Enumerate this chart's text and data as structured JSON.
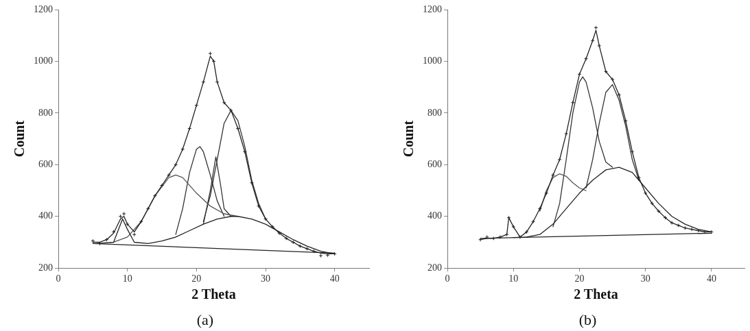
{
  "chart_data": [
    {
      "type": "line",
      "xlabel": "2 Theta",
      "ylabel": "Count",
      "annotations": [
        "(a)"
      ],
      "xlim": [
        0,
        45
      ],
      "xticks": [
        0,
        10,
        20,
        30,
        40
      ],
      "ylim": [
        200,
        1200
      ],
      "yticks": [
        200,
        400,
        600,
        800,
        1000,
        1200
      ],
      "grid": false,
      "legend": false,
      "marker": "none",
      "line_style": "solid",
      "series": [
        {
          "type": "scatter",
          "marker": "cross",
          "color": "#222222",
          "x": [
            5,
            6,
            7,
            8,
            9,
            9.5,
            10,
            11,
            12,
            13,
            14,
            15,
            16,
            17,
            18,
            19,
            20,
            21,
            22,
            22.5,
            23,
            24,
            25,
            26,
            27,
            28,
            29,
            30,
            31,
            32,
            33,
            34,
            35,
            36,
            37,
            38,
            39,
            40
          ],
          "values": [
            305,
            295,
            310,
            340,
            400,
            410,
            370,
            330,
            380,
            430,
            480,
            520,
            560,
            600,
            660,
            740,
            830,
            920,
            1030,
            1000,
            920,
            840,
            810,
            740,
            650,
            530,
            440,
            390,
            360,
            335,
            315,
            300,
            285,
            275,
            265,
            248,
            250,
            255
          ]
        },
        {
          "color": "#222222",
          "x": [
            5,
            6,
            7,
            8,
            9,
            9.5,
            10,
            11,
            12,
            13,
            14,
            15,
            16,
            17,
            18,
            19,
            20,
            21,
            22,
            22.5,
            23,
            24,
            25,
            26,
            27,
            28,
            29,
            30,
            31,
            32,
            33,
            34,
            35,
            36,
            37,
            38,
            39,
            40
          ],
          "values": [
            300,
            300,
            310,
            335,
            390,
            400,
            370,
            340,
            380,
            430,
            480,
            520,
            560,
            600,
            660,
            740,
            830,
            920,
            1020,
            1000,
            920,
            840,
            810,
            740,
            650,
            530,
            440,
            390,
            360,
            335,
            315,
            300,
            285,
            275,
            265,
            258,
            255,
            255
          ]
        },
        {
          "color": "#222222",
          "x": [
            5,
            40
          ],
          "values": [
            295,
            258
          ]
        },
        {
          "color": "#222222",
          "x": [
            5.5,
            8,
            9.3,
            10,
            11,
            13,
            15,
            17,
            19,
            21,
            23,
            25,
            26,
            28,
            30,
            32,
            34,
            36,
            38,
            40
          ],
          "values": [
            295,
            300,
            390,
            350,
            300,
            295,
            305,
            320,
            345,
            370,
            390,
            400,
            400,
            390,
            370,
            340,
            310,
            285,
            265,
            255
          ]
        },
        {
          "color": "#555555",
          "x": [
            8,
            10,
            12,
            14,
            16,
            17,
            18,
            20,
            22,
            24,
            26
          ],
          "values": [
            300,
            320,
            380,
            480,
            550,
            560,
            550,
            490,
            440,
            410,
            400
          ]
        },
        {
          "color": "#333333",
          "x": [
            17,
            18,
            19,
            20,
            20.5,
            21,
            22,
            23,
            24
          ],
          "values": [
            330,
            430,
            570,
            660,
            670,
            650,
            560,
            460,
            400
          ]
        },
        {
          "color": "#333333",
          "x": [
            21,
            22,
            22.8,
            23.5,
            24,
            25
          ],
          "values": [
            370,
            500,
            630,
            520,
            430,
            400
          ]
        },
        {
          "color": "#333333",
          "x": [
            21,
            22,
            23,
            24,
            25,
            26,
            27,
            28,
            29,
            30
          ],
          "values": [
            380,
            480,
            620,
            760,
            810,
            770,
            670,
            540,
            450,
            390
          ]
        }
      ]
    },
    {
      "type": "line",
      "xlabel": "2 Theta",
      "ylabel": "Count",
      "annotations": [
        "(b)"
      ],
      "xlim": [
        0,
        45
      ],
      "xticks": [
        0,
        10,
        20,
        30,
        40
      ],
      "ylim": [
        200,
        1200
      ],
      "yticks": [
        200,
        400,
        600,
        800,
        1000,
        1200
      ],
      "grid": false,
      "legend": false,
      "marker": "none",
      "line_style": "solid",
      "series": [
        {
          "type": "scatter",
          "marker": "cross",
          "color": "#222222",
          "x": [
            5,
            6,
            7,
            8,
            9,
            9.3,
            10,
            11,
            12,
            13,
            14,
            15,
            16,
            17,
            18,
            19,
            20,
            21,
            22,
            22.5,
            23,
            24,
            25,
            26,
            27,
            28,
            29,
            30,
            31,
            32,
            33,
            34,
            35,
            36,
            37,
            38,
            39,
            40
          ],
          "values": [
            310,
            320,
            315,
            320,
            330,
            395,
            360,
            320,
            340,
            380,
            430,
            490,
            560,
            620,
            720,
            840,
            950,
            1010,
            1080,
            1130,
            1060,
            960,
            930,
            870,
            770,
            650,
            550,
            490,
            450,
            420,
            395,
            375,
            365,
            355,
            350,
            345,
            340,
            340
          ]
        },
        {
          "color": "#222222",
          "x": [
            5,
            6,
            7,
            8,
            9,
            9.3,
            10,
            11,
            12,
            13,
            14,
            15,
            16,
            17,
            18,
            19,
            20,
            21,
            22,
            22.5,
            23,
            24,
            25,
            26,
            27,
            28,
            29,
            30,
            31,
            32,
            33,
            34,
            35,
            36,
            37,
            38,
            39,
            40
          ],
          "values": [
            310,
            315,
            315,
            320,
            330,
            395,
            360,
            320,
            340,
            380,
            430,
            490,
            560,
            620,
            720,
            840,
            950,
            1010,
            1080,
            1120,
            1060,
            960,
            930,
            870,
            770,
            650,
            550,
            490,
            450,
            420,
            395,
            375,
            365,
            355,
            350,
            345,
            340,
            340
          ]
        },
        {
          "color": "#222222",
          "x": [
            5,
            40
          ],
          "values": [
            315,
            335
          ]
        },
        {
          "color": "#222222",
          "x": [
            10,
            12,
            14,
            16,
            18,
            20,
            22,
            24,
            26,
            28,
            30,
            32,
            34,
            36,
            38,
            40
          ],
          "values": [
            318,
            320,
            330,
            370,
            430,
            490,
            540,
            580,
            590,
            570,
            510,
            450,
            400,
            370,
            350,
            340
          ]
        },
        {
          "color": "#555555",
          "x": [
            14,
            15,
            16,
            17,
            18,
            19,
            20,
            21
          ],
          "values": [
            420,
            500,
            550,
            565,
            555,
            530,
            510,
            500
          ]
        },
        {
          "color": "#333333",
          "x": [
            16,
            17,
            18,
            19,
            20,
            20.5,
            21,
            22,
            23,
            24,
            25
          ],
          "values": [
            360,
            450,
            620,
            800,
            920,
            940,
            920,
            820,
            690,
            610,
            590
          ]
        },
        {
          "color": "#333333",
          "x": [
            21,
            22,
            23,
            24,
            25,
            26,
            27,
            28,
            29
          ],
          "values": [
            510,
            620,
            760,
            880,
            910,
            850,
            750,
            620,
            540
          ]
        }
      ]
    }
  ]
}
